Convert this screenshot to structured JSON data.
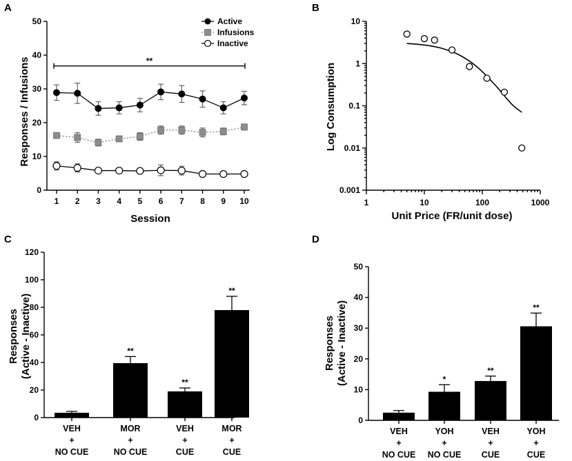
{
  "figure": {
    "panel_labels": [
      "A",
      "B",
      "C",
      "D"
    ]
  },
  "chart_data": [
    {
      "panel": "A",
      "type": "line",
      "xlabel": "Session",
      "ylabel": "Responses / Infusions",
      "x": [
        1,
        2,
        3,
        4,
        5,
        6,
        7,
        8,
        9,
        10
      ],
      "x_tick_labels": [
        "1",
        "2",
        "3",
        "4",
        "5",
        "6",
        "7",
        "8",
        "9",
        "10"
      ],
      "ylim": [
        0,
        50
      ],
      "y_ticks": [
        0,
        10,
        20,
        30,
        40,
        50
      ],
      "y_tick_labels": [
        "0",
        "10",
        "20",
        "30",
        "40",
        "50"
      ],
      "legend_position": "top-right",
      "series": [
        {
          "name": "Active",
          "marker": "filled-circle",
          "line": "solid",
          "values": [
            28.9,
            28.7,
            24.2,
            24.4,
            25.2,
            29.1,
            28.5,
            27.0,
            24.4,
            27.3
          ],
          "errors": [
            2.3,
            3.0,
            2.0,
            1.8,
            2.0,
            2.3,
            2.5,
            2.4,
            1.8,
            2.0
          ]
        },
        {
          "name": "Infusions",
          "marker": "grey-square",
          "line": "dotted",
          "values": [
            16.2,
            15.6,
            14.1,
            15.2,
            15.9,
            17.8,
            17.8,
            17.1,
            17.4,
            18.7
          ],
          "errors": [
            0.8,
            1.4,
            1.0,
            0.8,
            1.1,
            1.2,
            1.2,
            1.3,
            1.0,
            0.9
          ]
        },
        {
          "name": "Inactive",
          "marker": "open-circle",
          "line": "solid",
          "values": [
            7.2,
            6.6,
            5.8,
            5.8,
            5.7,
            5.9,
            5.8,
            4.8,
            4.8,
            4.8
          ],
          "errors": [
            1.2,
            1.2,
            0.5,
            0.5,
            0.5,
            1.6,
            1.3,
            0.5,
            0.5,
            0.5
          ]
        }
      ],
      "annotations": [
        {
          "text": "**",
          "from_x": 1,
          "to_x": 10,
          "y": 36.8
        }
      ]
    },
    {
      "panel": "B",
      "type": "scatter",
      "xlabel": "Unit Price (FR/unit dose)",
      "ylabel": "Log Consumption",
      "xscale": "log",
      "yscale": "log",
      "xlim": [
        1,
        1000
      ],
      "ylim": [
        0.001,
        10
      ],
      "x_ticks": [
        1,
        10,
        100,
        1000
      ],
      "x_tick_labels": [
        "1",
        "10",
        "100",
        "1000"
      ],
      "y_ticks": [
        0.001,
        0.01,
        0.1,
        1,
        10
      ],
      "y_tick_labels": [
        "0.001",
        "0.01",
        "0.1",
        "1",
        "10"
      ],
      "points": {
        "x": [
          5,
          10,
          15,
          30,
          60,
          120,
          240,
          480
        ],
        "y": [
          5.0,
          3.9,
          3.6,
          2.1,
          0.85,
          0.45,
          0.21,
          0.01
        ]
      },
      "fit_curve": {
        "x": [
          5,
          10,
          20,
          40,
          80,
          160,
          320,
          480
        ],
        "y": [
          3.0,
          2.75,
          2.3,
          1.6,
          0.85,
          0.33,
          0.11,
          0.07
        ]
      }
    },
    {
      "panel": "C",
      "type": "bar",
      "ylabel": "Responses",
      "ylabel_line2": "(Active - Inactive)",
      "ylim": [
        0,
        120
      ],
      "y_ticks": [
        0,
        20,
        40,
        60,
        80,
        100,
        120
      ],
      "y_tick_labels": [
        "0",
        "20",
        "40",
        "60",
        "80",
        "100",
        "120"
      ],
      "categories": [
        {
          "drug": "VEH",
          "plus": "+",
          "cue": "NO CUE"
        },
        {
          "drug": "MOR",
          "plus": "+",
          "cue": "NO CUE"
        },
        {
          "drug": "VEH",
          "plus": "+",
          "cue": "CUE"
        },
        {
          "drug": "MOR",
          "plus": "+",
          "cue": "CUE"
        }
      ],
      "values": [
        3.5,
        39.5,
        19.0,
        78.0
      ],
      "errors": [
        1.0,
        4.8,
        2.5,
        10.0
      ],
      "significance": [
        "",
        "**",
        "**",
        "**"
      ]
    },
    {
      "panel": "D",
      "type": "bar",
      "ylabel": "Responses",
      "ylabel_line2": "(Active - Inactive)",
      "ylim": [
        0,
        50
      ],
      "y_ticks": [
        0,
        10,
        20,
        30,
        40,
        50
      ],
      "y_tick_labels": [
        "0",
        "10",
        "20",
        "30",
        "40",
        "50"
      ],
      "categories": [
        {
          "drug": "VEH",
          "plus": "+",
          "cue": "NO CUE"
        },
        {
          "drug": "YOH",
          "plus": "+",
          "cue": "NO CUE"
        },
        {
          "drug": "VEH",
          "plus": "+",
          "cue": "CUE"
        },
        {
          "drug": "YOH",
          "plus": "+",
          "cue": "CUE"
        }
      ],
      "values": [
        2.5,
        9.3,
        12.8,
        30.6
      ],
      "errors": [
        0.7,
        2.3,
        1.6,
        4.3
      ],
      "significance": [
        "",
        "*",
        "**",
        "**"
      ]
    }
  ]
}
